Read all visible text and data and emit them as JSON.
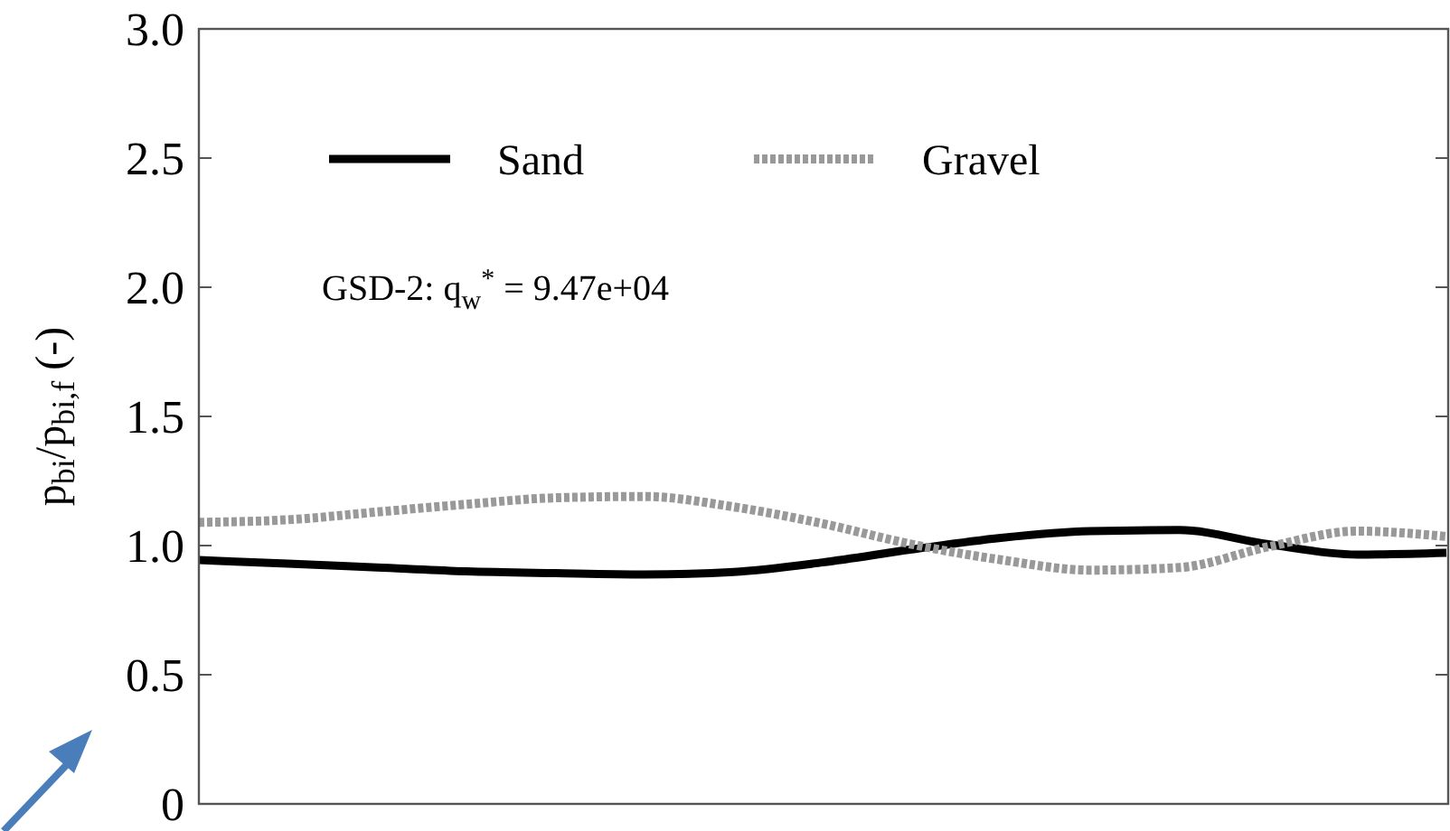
{
  "chart_data": {
    "type": "line",
    "ylabel": "p$_{bi}$/p$_{bi,f}$ (-)",
    "categories": [
      null,
      null,
      null,
      null,
      null,
      null,
      null,
      null,
      null,
      null,
      null,
      null,
      null,
      null,
      null
    ],
    "series": [
      {
        "name": "Sand",
        "color": "#000000",
        "line_style": "solid",
        "values": [
          0.944,
          0.93,
          0.915,
          0.9,
          0.893,
          0.888,
          0.898,
          0.935,
          0.985,
          1.03,
          1.056,
          1.06,
          1.005,
          0.965,
          0.972
        ]
      },
      {
        "name": "Gravel",
        "color": "#999999",
        "line_style": "dotted",
        "values": [
          1.09,
          1.1,
          1.13,
          1.16,
          1.185,
          1.19,
          1.15,
          1.085,
          1.005,
          0.945,
          0.905,
          0.915,
          0.995,
          1.056,
          1.035
        ]
      }
    ],
    "ylim": [
      0,
      3.0
    ],
    "yticks": [
      0,
      0.5,
      {
        "value": 1,
        "label": "1.0"
      },
      1.5,
      {
        "value": 2,
        "label": "2.0"
      },
      2.5,
      {
        "value": 3,
        "label": "3.0"
      }
    ],
    "tick_labels": "y",
    "grid": false,
    "legend": "top left",
    "marker": "none",
    "annotations": [
      "GSD-2: q$_{w}$$^{*}$ = 9.47e+04"
    ]
  }
}
